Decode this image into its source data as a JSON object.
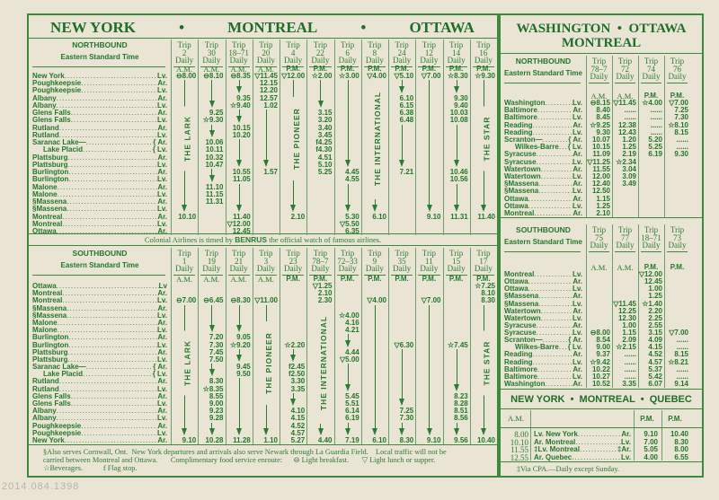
{
  "colors": {
    "ink": "#22782a",
    "paper": "#e9e4d4",
    "rule": "#3d8a3f"
  },
  "symbols": {
    "light_breakfast": "⊖",
    "light_lunch_or_supper": "▽",
    "beverages": "☆",
    "flag_stop": "f"
  },
  "main": {
    "title_parts": [
      "NEW YORK",
      "•",
      "MONTREAL",
      "•",
      "OTTAWA"
    ],
    "banner_pre": "Colonial Airlines is timed by ",
    "banner_brand": "BENRUS",
    "banner_post": " the official watch of famous airlines.",
    "northbound": {
      "heading": "NORTHBOUND",
      "subheading": "Eastern Standard Time",
      "stations": [
        [
          "New York",
          "Lv."
        ],
        [
          "Poughkeepsie",
          "Ar."
        ],
        [
          "Poughkeepsie",
          "Lv."
        ],
        [
          "Albany",
          "Ar."
        ],
        [
          "Albany",
          "Lv."
        ],
        [
          "Glens Falls",
          "Ar."
        ],
        [
          "Glens Falls",
          "Lv."
        ],
        [
          "Rutland",
          "Ar."
        ],
        [
          "Rutland",
          "Lv."
        ],
        [
          "Saranac Lake—",
          "{ Ar."
        ],
        [
          "Lake Placid",
          "{ Lv."
        ],
        [
          "Plattsburg",
          "Ar."
        ],
        [
          "Plattsburg",
          "Lv."
        ],
        [
          "Burlington",
          "Ar."
        ],
        [
          "Burlington",
          "Lv."
        ],
        [
          "Malone",
          "Ar."
        ],
        [
          "Malone",
          "Lv."
        ],
        [
          "§Massena",
          "Ar."
        ],
        [
          "§Massena",
          "Lv."
        ],
        [
          "Montreal",
          "Ar."
        ],
        [
          "Montreal",
          "Lv."
        ],
        [
          "Ottawa",
          "Ar."
        ]
      ],
      "trips": [
        {
          "trip": "2",
          "freq": "Daily",
          "period": "A.M.",
          "name": "THE LARK",
          "times": {
            "0": "⊖8.00",
            "19": "10.10"
          }
        },
        {
          "trip": "30",
          "freq": "Daily",
          "period": "A.M.",
          "times": {
            "0": "⊖8.10",
            "5": "9.25",
            "6": "☆9.30",
            "9": "10.06",
            "10": "10.11",
            "11": "10.32",
            "12": "10.47",
            "15": "11.10",
            "16": "11.15",
            "17": "11.31"
          }
        },
        {
          "trip": "18–71",
          "freq": "Daily",
          "period": "A.M.",
          "times": {
            "0": "⊖8.35",
            "3": "9.35",
            "4": "☆9.40",
            "7": "10.15",
            "8": "10.20",
            "13": "10.55",
            "14": "11.05",
            "19": "11.40",
            "20": "▽12.00",
            "21": "12.45"
          }
        },
        {
          "trip": "20",
          "freq": "Daily",
          "period": "A.M.",
          "times": {
            "0": "▽11.45",
            "1": "12.15",
            "2": "12.20",
            "3": "12.57",
            "4": "1.02",
            "13": "1.57"
          }
        },
        {
          "trip": "4",
          "freq": "Daily",
          "period": "P.M.",
          "name": "THE PIONEER",
          "times": {
            "0": "▽12.00",
            "19": "2.10"
          }
        },
        {
          "trip": "22",
          "freq": "Daily",
          "period": "P.M.",
          "times": {
            "0": "☆2.00",
            "5": "3.15",
            "6": "3.20",
            "7": "3.40",
            "8": "3.45",
            "9": "f4.25",
            "10": "f4.30",
            "11": "4.51",
            "12": "5.10",
            "13": "5.25"
          }
        },
        {
          "trip": "6",
          "freq": "Daily",
          "period": "P.M.",
          "times": {
            "0": "☆3.00",
            "13": "4.45",
            "14": "4.55",
            "19": "5.30",
            "20": "▽5.50",
            "21": "6.35"
          }
        },
        {
          "trip": "8",
          "freq": "Daily",
          "period": "P.M.",
          "name": "THE INTERNATIONAL",
          "times": {
            "0": "▽4.00",
            "19": "6.10"
          }
        },
        {
          "trip": "24",
          "freq": "Daily",
          "period": "P.M.",
          "times": {
            "0": "▽5.10",
            "3": "6.10",
            "4": "6.15",
            "5": "6.38",
            "6": "6.48",
            "13": "7.21"
          }
        },
        {
          "trip": "12",
          "freq": "Daily",
          "period": "P.M.",
          "times": {
            "0": "▽7.00",
            "19": "9.10"
          }
        },
        {
          "trip": "14",
          "freq": "Daily",
          "period": "P.M.",
          "times": {
            "0": "☆8.30",
            "3": "9.30",
            "4": "9.40",
            "5": "10.03",
            "6": "10.08",
            "13": "10.46",
            "14": "10.56",
            "19": "11.31"
          }
        },
        {
          "trip": "16",
          "freq": "Daily",
          "period": "P.M.",
          "name": "THE STAR",
          "times": {
            "0": "☆9.30",
            "19": "11.40"
          }
        }
      ]
    },
    "southbound": {
      "heading": "SOUTHBOUND",
      "subheading": "Eastern Standard Time",
      "stations": [
        [
          "Ottawa",
          "Lv"
        ],
        [
          "Montreal",
          "Ar."
        ],
        [
          "Montreal",
          "Lv."
        ],
        [
          "§Massena",
          "Ar."
        ],
        [
          "§Massena",
          "Lv."
        ],
        [
          "Malone",
          "Ar."
        ],
        [
          "Malone",
          "Lv."
        ],
        [
          "Burlington",
          "Ar."
        ],
        [
          "Burlington",
          "Lv."
        ],
        [
          "Plattsburg",
          "Ar."
        ],
        [
          "Plattsburg",
          "Lv."
        ],
        [
          "Saranac Lake—",
          "{ Ar."
        ],
        [
          "Lake Placid",
          "{ Lv."
        ],
        [
          "Rutland",
          "Ar."
        ],
        [
          "Rutland",
          "Lv."
        ],
        [
          "Glens Falls",
          "Ar."
        ],
        [
          "Glens Falls",
          "Lv."
        ],
        [
          "Albany",
          "Ar."
        ],
        [
          "Albany",
          "Lv."
        ],
        [
          "Poughkeepsie",
          "Ar."
        ],
        [
          "Poughkeepsie",
          "Lv."
        ],
        [
          "New York",
          "Ar."
        ]
      ],
      "trips": [
        {
          "trip": "1",
          "freq": "Daily",
          "period": "A.M.",
          "name": "THE LARK",
          "times": {
            "2": "⊖7.00",
            "21": "9.10"
          }
        },
        {
          "trip": "19",
          "freq": "Daily",
          "period": "A.M.",
          "times": {
            "2": "⊖6.45",
            "7": "7.20",
            "8": "7.30",
            "9": "7.45",
            "10": "7.50",
            "13": "8.30",
            "14": "☆8.35",
            "15": "8.55",
            "16": "9.00",
            "17": "9.23",
            "18": "9.28",
            "21": "10.28"
          }
        },
        {
          "trip": "21",
          "freq": "Daily",
          "period": "A.M.",
          "times": {
            "2": "⊖8.30",
            "7": "9.05",
            "8": "☆9.20",
            "11": "9.45",
            "12": "9.50",
            "21": "11.28"
          }
        },
        {
          "trip": "3",
          "freq": "Daily",
          "period": "A.M.",
          "name": "THE PIONEER",
          "times": {
            "2": "▽11.00",
            "21": "1.10"
          }
        },
        {
          "trip": "23",
          "freq": "Daily",
          "period": "P.M.",
          "times": {
            "8": "☆2.20",
            "11": "f2.45",
            "12": "f2.50",
            "13": "3.30",
            "14": "3.35",
            "17": "4.10",
            "18": "4.15",
            "19": "4.52",
            "20": "4.57",
            "21": "5.27"
          }
        },
        {
          "trip": "78–7",
          "freq": "Daily",
          "period": "P.M.",
          "name": "THE INTERNATIONAL",
          "times": {
            "0": "▽1.25",
            "1": "2.10",
            "2": "2.30",
            "21": "4.40"
          }
        },
        {
          "trip": "72–33",
          "freq": "Daily",
          "period": "P.M.",
          "times": {
            "4": "☆4.00",
            "5": "4.16",
            "6": "4.21",
            "9": "4.44",
            "10": "▽5.00",
            "15": "5.45",
            "16": "5.51",
            "17": "6.14",
            "18": "6.19",
            "21": "7.19"
          }
        },
        {
          "trip": "9",
          "freq": "Daily",
          "period": "P.M.",
          "times": {
            "2": "▽4.00",
            "21": "6.10"
          }
        },
        {
          "trip": "35",
          "freq": "Daily",
          "period": "P.M.",
          "times": {
            "8": "▽6.30",
            "17": "7.25",
            "18": "7.30",
            "21": "8.30"
          }
        },
        {
          "trip": "11",
          "freq": "Daily",
          "period": "P.M.",
          "times": {
            "2": "▽7.00",
            "21": "9.10"
          }
        },
        {
          "trip": "15",
          "freq": "Daily",
          "period": "P.M.",
          "times": {
            "8": "☆7.45",
            "15": "8.23",
            "16": "8.28",
            "17": "8.51",
            "18": "8.56",
            "21": "9.56"
          }
        },
        {
          "trip": "17",
          "freq": "Daily",
          "period": "P.M.",
          "name": "THE STAR",
          "times": {
            "0": "☆7.25",
            "1": "8.10",
            "2": "8.30",
            "21": "10.40"
          }
        }
      ]
    },
    "footnotes": [
      "§Also serves Cornwall, Ont.  New York departures and arrivals also serve Newark through La Guardia Field.    Local traffic will not be",
      "carried between Montreal and Ottawa.       Complimentary food service enroute:      ⊖ Light breakfast.       ▽ Light lunch or supper.",
      "☆Beverages.           f Flag stop."
    ]
  },
  "side": {
    "title_line1": "WASHINGTON  •  OTTAWA",
    "title_line2": "MONTREAL",
    "northbound": {
      "heading": "NORTHBOUND",
      "subheading": "Eastern Standard Time",
      "stations": [
        [
          "Washington",
          "Lv."
        ],
        [
          "Baltimore",
          "Ar."
        ],
        [
          "Baltimore",
          "Lv."
        ],
        [
          "Reading",
          "Ar."
        ],
        [
          "Reading",
          "Lv."
        ],
        [
          "Scranton—",
          "{ Ar."
        ],
        [
          "Wilkes-Barre",
          "{ Lv."
        ],
        [
          "Syracuse",
          "Ar."
        ],
        [
          "Syracuse",
          "Lv."
        ],
        [
          "Watertown",
          "Ar."
        ],
        [
          "Watertown",
          "Lv."
        ],
        [
          "§Massena",
          "Ar."
        ],
        [
          "§Massena",
          "Lv."
        ],
        [
          "Ottawa",
          "Ar."
        ],
        [
          "Ottawa",
          "Lv."
        ],
        [
          "Montreal",
          "Ar."
        ]
      ],
      "trips": [
        {
          "trip": "78–7",
          "freq": "Daily",
          "period": "A.M.",
          "times": [
            "⊖8.15",
            "8.40",
            "8.45",
            "☆9.25",
            "9.30",
            "10.07",
            "10.15",
            "11.09",
            "▽11.25",
            "11.55",
            "12.00",
            "12.40",
            "12.50",
            "1.15",
            "1.25",
            "2.10"
          ]
        },
        {
          "trip": "72",
          "freq": "Daily",
          "period": "A.M.",
          "times": [
            "▽11.45",
            "......",
            "......",
            "12.38",
            "12.43",
            "1.20",
            "1.25",
            "2.19",
            "☆2.34",
            "3.04",
            "3.09",
            "3.49"
          ]
        },
        {
          "trip": "74",
          "freq": "Daily",
          "period": "P.M.",
          "times": [
            "☆4.00",
            "......",
            "......",
            "......",
            "......",
            "5.20",
            "5.25",
            "6.19"
          ]
        },
        {
          "trip": "76",
          "freq": "Daily",
          "period": "P.M.",
          "times": [
            "▽7.00",
            "7.25",
            "7.30",
            "☆8.10",
            "8.15",
            "......",
            "......",
            "9.30"
          ]
        }
      ]
    },
    "southbound": {
      "heading": "SOUTHBOUND",
      "subheading": "Eastern Standard Time",
      "stations": [
        [
          "Montreal",
          "Lv."
        ],
        [
          "Ottawa",
          "Ar."
        ],
        [
          "Ottawa",
          "Lv."
        ],
        [
          "§Massena",
          "Ar."
        ],
        [
          "§Massena",
          "Lv."
        ],
        [
          "Watertown",
          "Ar."
        ],
        [
          "Watertown",
          "Lv."
        ],
        [
          "Syracuse",
          "Ar."
        ],
        [
          "Syracuse",
          "Lv."
        ],
        [
          "Scranton—",
          "{ Ar."
        ],
        [
          "Wilkes-Barre",
          "{ Lv."
        ],
        [
          "Reading",
          "Ar."
        ],
        [
          "Reading",
          "Lv."
        ],
        [
          "Baltimore",
          "Ar."
        ],
        [
          "Baltimore",
          "Lv."
        ],
        [
          "Washington",
          "Ar."
        ]
      ],
      "trips": [
        {
          "trip": "75",
          "freq": "Daily",
          "period": "A.M.",
          "times": {
            "8": "⊖8.00",
            "9": "8.54",
            "10": "9.00",
            "11": "9.37",
            "12": "☆9.42",
            "13": "10.22",
            "14": "10.27",
            "15": "10.52"
          }
        },
        {
          "trip": "77",
          "freq": "Daily",
          "period": "A.M.",
          "times": {
            "4": "▽11.45",
            "5": "12.25",
            "6": "12.30",
            "7": "1.00",
            "8": "1.15",
            "9": "2.09",
            "10": "☆2.15",
            "11": "......",
            "12": "......",
            "13": "......",
            "14": "......",
            "15": "3.35"
          }
        },
        {
          "trip": "18–71",
          "freq": "Daily",
          "period": "P.M.",
          "times": {
            "0": "▽12.00",
            "1": "12.45",
            "2": "1.00",
            "3": "1.25",
            "4": "☆1.40",
            "5": "2.20",
            "6": "2.25",
            "7": "2.55",
            "8": "3.15",
            "9": "4.09",
            "10": "4.15",
            "11": "4.52",
            "12": "4.57",
            "13": "5.37",
            "14": "5.42",
            "15": "6.07"
          }
        },
        {
          "trip": "73",
          "freq": "Daily",
          "period": "P.M.",
          "times": {
            "8": "▽7.00",
            "9": "......",
            "10": "......",
            "11": "8.15",
            "12": "☆8.21",
            "13": "......",
            "14": "......",
            "15": "9.14"
          }
        }
      ]
    },
    "quebec": {
      "title": "NEW YORK  •  MONTREAL  •  QUEBEC",
      "am_label": "A.M.",
      "pm_labels": [
        "P.M.",
        "P.M."
      ],
      "rows": [
        {
          "am": "8.00",
          "left": "Lv. New York",
          "right": "Ar.",
          "pm1": "9.10",
          "pm2": "10.40"
        },
        {
          "am": "10.10",
          "left": "Ar. Montreal",
          "right": "Lv.",
          "pm1": "7.00",
          "pm2": "8.30"
        },
        {
          "am": "11.55",
          "left": "‡Lv. Montreal",
          "right": "‡Ar.",
          "pm1": "5.05",
          "pm2": "8.00"
        },
        {
          "am": "12.55",
          "left": "Ar. Quebec",
          "right": "Lv.",
          "pm1": "4.00",
          "pm2": "6.55"
        }
      ],
      "footnote": "‡Via CPA.—Daily except Sunday."
    }
  },
  "stamp": "2014.084.1398"
}
